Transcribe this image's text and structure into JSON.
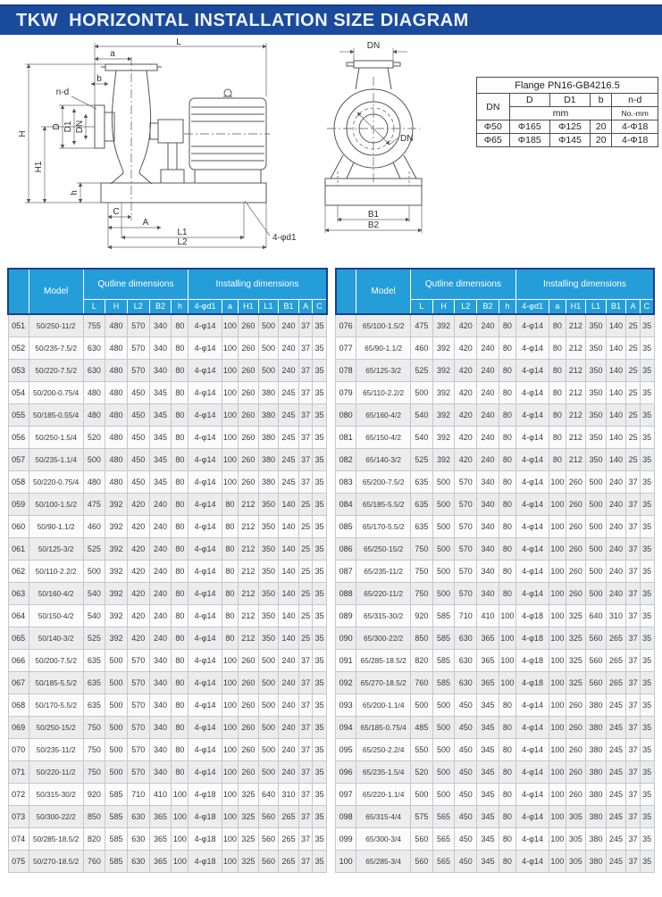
{
  "title": "TKW  HORIZONTAL INSTALLATION SIZE DIAGRAM",
  "colors": {
    "banner_bg": "#1a4a9c",
    "table_header_bg": "#259dd9",
    "table_header_outline": "#17418f",
    "row_alt_bg": "#ececec"
  },
  "flange_table": {
    "title": "Flange PN16-GB4216.5",
    "col_dn": "DN",
    "cols": [
      "D",
      "D1",
      "b",
      "n-d"
    ],
    "unit_mm": "mm",
    "unit_nd": "No.-mm",
    "rows": [
      [
        "Φ50",
        "Φ165",
        "Φ125",
        "20",
        "4-Φ18"
      ],
      [
        "Φ65",
        "Φ185",
        "Φ145",
        "20",
        "4-Φ18"
      ]
    ]
  },
  "drawings": {
    "side_view": {
      "L": "L",
      "a": "a",
      "b": "b",
      "nd": "n-d",
      "H": "H",
      "D": "D",
      "D1": "D1",
      "DN": "DN",
      "H1": "H1",
      "h": "h",
      "C": "C",
      "A": "A",
      "L1": "L1",
      "L2": "L2",
      "d1": "4-φd1"
    },
    "front_view": {
      "DN_top": "DN",
      "DN_inner": "DN",
      "B1": "B1",
      "B2": "B2"
    }
  },
  "size_table": {
    "model_header": "Model",
    "group1": "Qutline dimensions",
    "group2": "Installing dimensions",
    "sub1": [
      "L",
      "H",
      "L2",
      "B2",
      "h"
    ],
    "sub2": [
      "4-φd1",
      "a",
      "H1",
      "L1",
      "B1",
      "A",
      "C"
    ],
    "rows_left": [
      [
        "051",
        "50/250-11/2",
        "755",
        "480",
        "570",
        "340",
        "80",
        "4-φ14",
        "100",
        "260",
        "500",
        "240",
        "37",
        "35"
      ],
      [
        "052",
        "50/235-7.5/2",
        "630",
        "480",
        "570",
        "340",
        "80",
        "4-φ14",
        "100",
        "260",
        "500",
        "240",
        "37",
        "35"
      ],
      [
        "053",
        "50/220-7.5/2",
        "630",
        "480",
        "570",
        "340",
        "80",
        "4-φ14",
        "100",
        "260",
        "500",
        "240",
        "37",
        "35"
      ],
      [
        "054",
        "50/200-0.75/4",
        "480",
        "480",
        "450",
        "345",
        "80",
        "4-φ14",
        "100",
        "260",
        "380",
        "245",
        "37",
        "35"
      ],
      [
        "055",
        "50/185-0.55/4",
        "480",
        "480",
        "450",
        "345",
        "80",
        "4-φ14",
        "100",
        "260",
        "380",
        "245",
        "37",
        "35"
      ],
      [
        "056",
        "50/250-1.5/4",
        "520",
        "480",
        "450",
        "345",
        "80",
        "4-φ14",
        "100",
        "260",
        "380",
        "245",
        "37",
        "35"
      ],
      [
        "057",
        "50/235-1.1/4",
        "500",
        "480",
        "450",
        "345",
        "80",
        "4-φ14",
        "100",
        "260",
        "380",
        "245",
        "37",
        "35"
      ],
      [
        "058",
        "50/220-0.75/4",
        "480",
        "480",
        "450",
        "345",
        "80",
        "4-φ14",
        "100",
        "260",
        "380",
        "245",
        "37",
        "35"
      ],
      [
        "059",
        "50/100-1.5/2",
        "475",
        "392",
        "420",
        "240",
        "80",
        "4-φ14",
        "80",
        "212",
        "350",
        "140",
        "25",
        "35"
      ],
      [
        "060",
        "50/90-1.1/2",
        "460",
        "392",
        "420",
        "240",
        "80",
        "4-φ14",
        "80",
        "212",
        "350",
        "140",
        "25",
        "35"
      ],
      [
        "061",
        "50/125-3/2",
        "525",
        "392",
        "420",
        "240",
        "80",
        "4-φ14",
        "80",
        "212",
        "350",
        "140",
        "25",
        "35"
      ],
      [
        "062",
        "50/110-2.2/2",
        "500",
        "392",
        "420",
        "240",
        "80",
        "4-φ14",
        "80",
        "212",
        "350",
        "140",
        "25",
        "35"
      ],
      [
        "063",
        "50/160-4/2",
        "540",
        "392",
        "420",
        "240",
        "80",
        "4-φ14",
        "80",
        "212",
        "350",
        "140",
        "25",
        "35"
      ],
      [
        "064",
        "50/150-4/2",
        "540",
        "392",
        "420",
        "240",
        "80",
        "4-φ14",
        "80",
        "212",
        "350",
        "140",
        "25",
        "35"
      ],
      [
        "065",
        "50/140-3/2",
        "525",
        "392",
        "420",
        "240",
        "80",
        "4-φ14",
        "80",
        "212",
        "350",
        "140",
        "25",
        "35"
      ],
      [
        "066",
        "50/200-7.5/2",
        "635",
        "500",
        "570",
        "340",
        "80",
        "4-φ14",
        "100",
        "260",
        "500",
        "240",
        "37",
        "35"
      ],
      [
        "067",
        "50/185-5.5/2",
        "635",
        "500",
        "570",
        "340",
        "80",
        "4-φ14",
        "100",
        "260",
        "500",
        "240",
        "37",
        "35"
      ],
      [
        "068",
        "50/170-5.5/2",
        "635",
        "500",
        "570",
        "340",
        "80",
        "4-φ14",
        "100",
        "260",
        "500",
        "240",
        "37",
        "35"
      ],
      [
        "069",
        "50/250-15/2",
        "750",
        "500",
        "570",
        "340",
        "80",
        "4-φ14",
        "100",
        "260",
        "500",
        "240",
        "37",
        "35"
      ],
      [
        "070",
        "50/235-11/2",
        "750",
        "500",
        "570",
        "340",
        "80",
        "4-φ14",
        "100",
        "260",
        "500",
        "240",
        "37",
        "35"
      ],
      [
        "071",
        "50/220-11/2",
        "750",
        "500",
        "570",
        "340",
        "80",
        "4-φ14",
        "100",
        "260",
        "500",
        "240",
        "37",
        "35"
      ],
      [
        "072",
        "50/315-30/2",
        "920",
        "585",
        "710",
        "410",
        "100",
        "4-φ18",
        "100",
        "325",
        "640",
        "310",
        "37",
        "35"
      ],
      [
        "073",
        "50/300-22/2",
        "850",
        "585",
        "630",
        "365",
        "100",
        "4-φ18",
        "100",
        "325",
        "560",
        "265",
        "37",
        "35"
      ],
      [
        "074",
        "50/285-18.5/2",
        "820",
        "585",
        "630",
        "365",
        "100",
        "4-φ18",
        "100",
        "325",
        "560",
        "265",
        "37",
        "35"
      ],
      [
        "075",
        "50/270-18.5/2",
        "760",
        "585",
        "630",
        "365",
        "100",
        "4-φ18",
        "100",
        "325",
        "560",
        "265",
        "37",
        "35"
      ]
    ],
    "rows_right": [
      [
        "076",
        "65/100-1.5/2",
        "475",
        "392",
        "420",
        "240",
        "80",
        "4-φ14",
        "80",
        "212",
        "350",
        "140",
        "25",
        "35"
      ],
      [
        "077",
        "65/90-1.1/2",
        "460",
        "392",
        "420",
        "240",
        "80",
        "4-φ14",
        "80",
        "212",
        "350",
        "140",
        "25",
        "35"
      ],
      [
        "078",
        "65/125-3/2",
        "525",
        "392",
        "420",
        "240",
        "80",
        "4-φ14",
        "80",
        "212",
        "350",
        "140",
        "25",
        "35"
      ],
      [
        "079",
        "65/110-2.2/2",
        "500",
        "392",
        "420",
        "240",
        "80",
        "4-φ14",
        "80",
        "212",
        "350",
        "140",
        "25",
        "35"
      ],
      [
        "080",
        "65/160-4/2",
        "540",
        "392",
        "420",
        "240",
        "80",
        "4-φ14",
        "80",
        "212",
        "350",
        "140",
        "25",
        "35"
      ],
      [
        "081",
        "65/150-4/2",
        "540",
        "392",
        "420",
        "240",
        "80",
        "4-φ14",
        "80",
        "212",
        "350",
        "140",
        "25",
        "35"
      ],
      [
        "082",
        "65/140-3/2",
        "525",
        "392",
        "420",
        "240",
        "80",
        "4-φ14",
        "80",
        "212",
        "350",
        "140",
        "25",
        "35"
      ],
      [
        "083",
        "65/200-7.5/2",
        "635",
        "500",
        "570",
        "340",
        "80",
        "4-φ14",
        "100",
        "260",
        "500",
        "240",
        "37",
        "35"
      ],
      [
        "084",
        "65/185-5.5/2",
        "635",
        "500",
        "570",
        "340",
        "80",
        "4-φ14",
        "100",
        "260",
        "500",
        "240",
        "37",
        "35"
      ],
      [
        "085",
        "65/170-5.5/2",
        "635",
        "500",
        "570",
        "340",
        "80",
        "4-φ14",
        "100",
        "260",
        "500",
        "240",
        "37",
        "35"
      ],
      [
        "086",
        "65/250-15/2",
        "750",
        "500",
        "570",
        "340",
        "80",
        "4-φ14",
        "100",
        "260",
        "500",
        "240",
        "37",
        "35"
      ],
      [
        "087",
        "65/235-11/2",
        "750",
        "500",
        "570",
        "340",
        "80",
        "4-φ14",
        "100",
        "260",
        "500",
        "240",
        "37",
        "35"
      ],
      [
        "088",
        "65/220-11/2",
        "750",
        "500",
        "570",
        "340",
        "80",
        "4-φ14",
        "100",
        "260",
        "500",
        "240",
        "37",
        "35"
      ],
      [
        "089",
        "65/315-30/2",
        "920",
        "585",
        "710",
        "410",
        "100",
        "4-φ18",
        "100",
        "325",
        "640",
        "310",
        "37",
        "35"
      ],
      [
        "090",
        "65/300-22/2",
        "850",
        "585",
        "630",
        "365",
        "100",
        "4-φ18",
        "100",
        "325",
        "560",
        "265",
        "37",
        "35"
      ],
      [
        "091",
        "65/285-18.5/2",
        "820",
        "585",
        "630",
        "365",
        "100",
        "4-φ18",
        "100",
        "325",
        "560",
        "265",
        "37",
        "35"
      ],
      [
        "092",
        "65/270-18.5/2",
        "760",
        "585",
        "630",
        "365",
        "100",
        "4-φ18",
        "100",
        "325",
        "560",
        "265",
        "37",
        "35"
      ],
      [
        "093",
        "65/200-1.1/4",
        "500",
        "500",
        "450",
        "345",
        "80",
        "4-φ14",
        "100",
        "260",
        "380",
        "245",
        "37",
        "35"
      ],
      [
        "094",
        "65/185-0.75/4",
        "485",
        "500",
        "450",
        "345",
        "80",
        "4-φ14",
        "100",
        "260",
        "380",
        "245",
        "37",
        "35"
      ],
      [
        "095",
        "65/250-2.2/4",
        "550",
        "500",
        "450",
        "345",
        "80",
        "4-φ14",
        "100",
        "260",
        "380",
        "245",
        "37",
        "35"
      ],
      [
        "096",
        "65/235-1.5/4",
        "520",
        "500",
        "450",
        "345",
        "80",
        "4-φ14",
        "100",
        "260",
        "380",
        "245",
        "37",
        "35"
      ],
      [
        "097",
        "65/220-1.1/4",
        "500",
        "500",
        "450",
        "345",
        "80",
        "4-φ14",
        "100",
        "260",
        "380",
        "245",
        "37",
        "35"
      ],
      [
        "098",
        "65/315-4/4",
        "575",
        "565",
        "450",
        "345",
        "80",
        "4-φ14",
        "100",
        "305",
        "380",
        "245",
        "37",
        "35"
      ],
      [
        "099",
        "65/300-3/4",
        "560",
        "565",
        "450",
        "345",
        "80",
        "4-φ14",
        "100",
        "305",
        "380",
        "245",
        "37",
        "35"
      ],
      [
        "100",
        "65/285-3/4",
        "560",
        "565",
        "450",
        "345",
        "80",
        "4-φ14",
        "100",
        "305",
        "380",
        "245",
        "37",
        "35"
      ]
    ]
  }
}
